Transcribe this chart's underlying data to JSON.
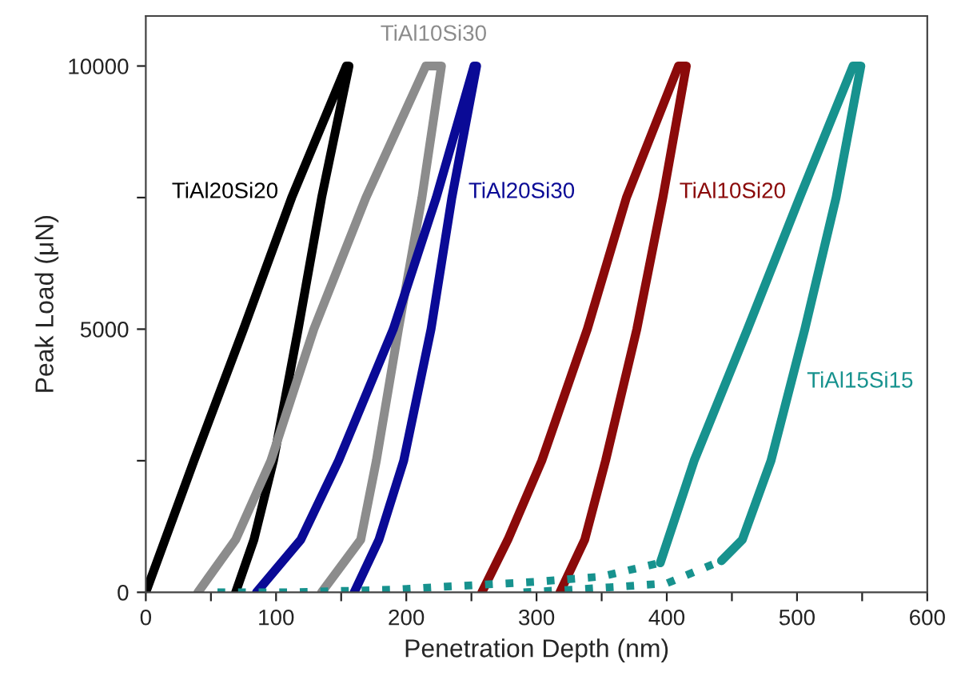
{
  "chart_data": {
    "type": "line",
    "xlabel": "Penetration Depth (nm)",
    "ylabel": "Peak Load (μN)",
    "xlim": [
      0,
      600
    ],
    "ylim": [
      0,
      10950
    ],
    "xticks": [
      0,
      {
        "value": 50,
        "label": null
      },
      100,
      {
        "value": 150,
        "label": null
      },
      200,
      {
        "value": 250,
        "label": null
      },
      300,
      {
        "value": 350,
        "label": null
      },
      400,
      {
        "value": 450,
        "label": null
      },
      500,
      {
        "value": 550,
        "label": null
      },
      600
    ],
    "yticks": [
      0,
      {
        "value": 2500,
        "label": null
      },
      5000,
      {
        "value": 7500,
        "label": null
      },
      10000
    ],
    "grid": false,
    "legend": false,
    "marker": "none",
    "series": [
      {
        "name": "TiAl20Si20",
        "color": "#000000",
        "line_style": "solid",
        "x": [
          0,
          37,
          75,
          112,
          154,
          156,
          135,
          117,
          98,
          83,
          69
        ],
        "values": [
          0,
          2500,
          5000,
          7500,
          10000,
          10000,
          7500,
          5000,
          2500,
          1000,
          0
        ]
      },
      {
        "name": "TiAl10Si30",
        "color": "#8c8c8c",
        "line_style": "solid",
        "x": [
          40,
          69,
          96,
          129,
          169,
          215,
          227,
          212,
          194,
          177,
          165,
          135
        ],
        "values": [
          0,
          1000,
          2500,
          5000,
          7500,
          10000,
          10000,
          7500,
          5000,
          2500,
          1000,
          0
        ]
      },
      {
        "name": "TiAl20Si30",
        "color": "#0a0a96",
        "line_style": "solid",
        "x": [
          85,
          119,
          148,
          190,
          223,
          252,
          254,
          235,
          219,
          198,
          179,
          160
        ],
        "values": [
          0,
          1000,
          2500,
          5000,
          7500,
          10000,
          10000,
          7500,
          5000,
          2500,
          1000,
          0
        ]
      },
      {
        "name": "TiAl10Si20",
        "color": "#8b0a0a",
        "line_style": "solid",
        "x": [
          258,
          278,
          304,
          339,
          369,
          409,
          415,
          397,
          377,
          353,
          337,
          318
        ],
        "values": [
          0,
          1000,
          2500,
          5000,
          7500,
          10000,
          10000,
          7500,
          5000,
          2500,
          1000,
          0
        ]
      },
      {
        "name": "TiAl15Si15",
        "color": "#17928e",
        "line_style": "solid",
        "x": [
          395,
          421,
          462,
          502,
          543,
          549,
          530,
          506,
          480,
          458,
          442
        ],
        "values": [
          560,
          2500,
          5000,
          7500,
          10000,
          10000,
          7500,
          5000,
          2500,
          1000,
          600
        ]
      },
      {
        "color": "#17928e",
        "line_style": "dotted",
        "x": [
          55,
          110,
          190,
          225,
          300,
          350,
          395
        ],
        "values": [
          0,
          0,
          50,
          100,
          200,
          300,
          560
        ]
      },
      {
        "color": "#17928e",
        "line_style": "dotted",
        "x": [
          290,
          320,
          360,
          400,
          442
        ],
        "values": [
          0,
          40,
          100,
          170,
          600
        ]
      }
    ]
  }
}
